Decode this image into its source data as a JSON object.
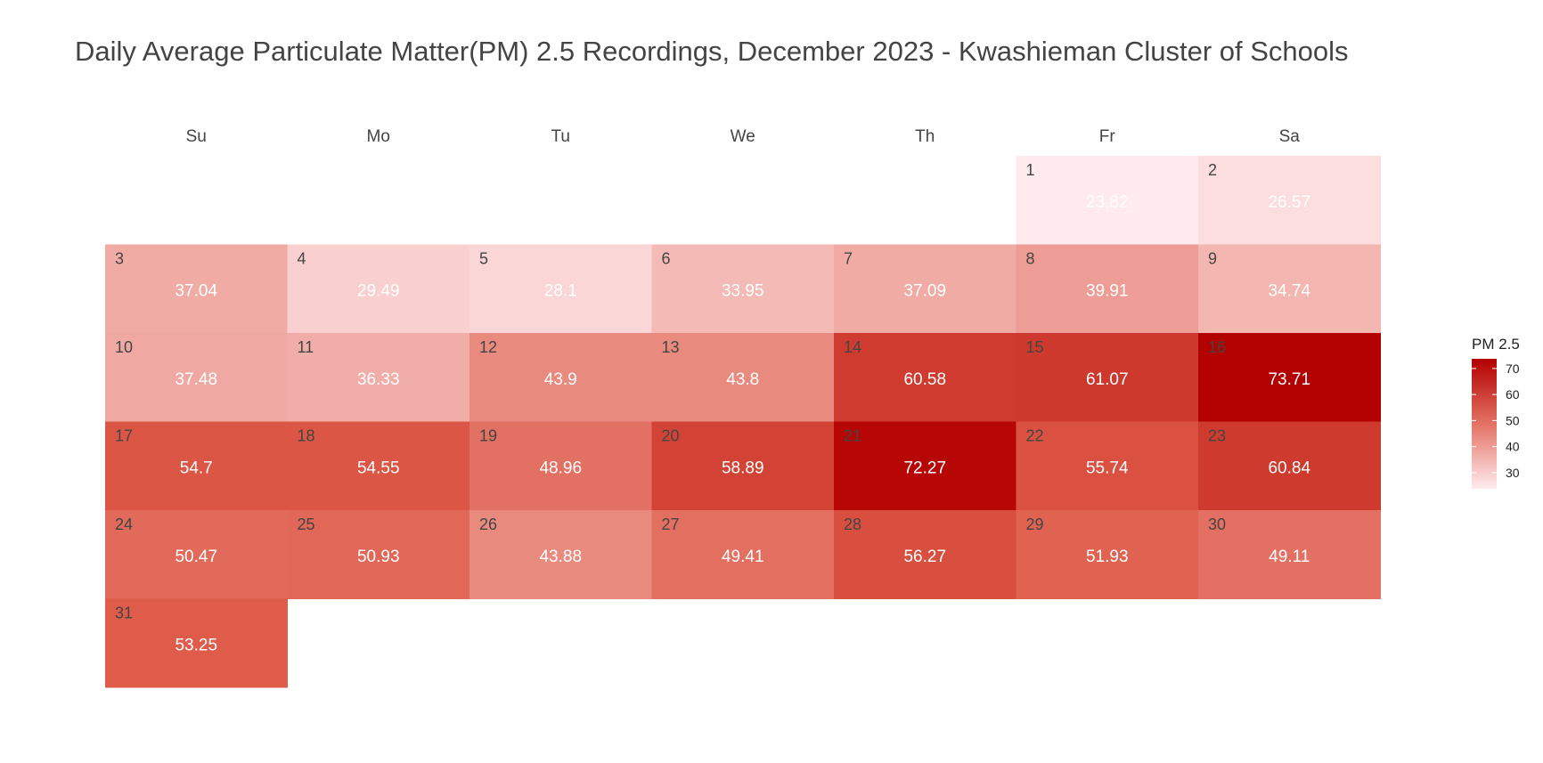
{
  "chart_data": {
    "type": "heatmap",
    "title": "Daily Average Particulate Matter(PM) 2.5 Recordings, December 2023 - Kwashieman Cluster of Schools",
    "weekdays": [
      "Su",
      "Mo",
      "Tu",
      "We",
      "Th",
      "Fr",
      "Sa"
    ],
    "first_weekday_index": 5,
    "days": [
      {
        "day": "1",
        "value": 23.82
      },
      {
        "day": "2",
        "value": 26.57
      },
      {
        "day": "3",
        "value": 37.04
      },
      {
        "day": "4",
        "value": 29.49
      },
      {
        "day": "5",
        "value": 28.1
      },
      {
        "day": "6",
        "value": 33.95
      },
      {
        "day": "7",
        "value": 37.09
      },
      {
        "day": "8",
        "value": 39.91
      },
      {
        "day": "9",
        "value": 34.74
      },
      {
        "day": "10",
        "value": 37.48
      },
      {
        "day": "11",
        "value": 36.33
      },
      {
        "day": "12",
        "value": 43.9
      },
      {
        "day": "13",
        "value": 43.8
      },
      {
        "day": "14",
        "value": 60.58
      },
      {
        "day": "15",
        "value": 61.07
      },
      {
        "day": "16",
        "value": 73.71
      },
      {
        "day": "17",
        "value": 54.7
      },
      {
        "day": "18",
        "value": 54.55
      },
      {
        "day": "19",
        "value": 48.96
      },
      {
        "day": "20",
        "value": 58.89
      },
      {
        "day": "21",
        "value": 72.27
      },
      {
        "day": "22",
        "value": 55.74
      },
      {
        "day": "23",
        "value": 60.84
      },
      {
        "day": "24",
        "value": 50.47
      },
      {
        "day": "25",
        "value": 50.93
      },
      {
        "day": "26",
        "value": 43.88
      },
      {
        "day": "27",
        "value": 49.41
      },
      {
        "day": "28",
        "value": 56.27
      },
      {
        "day": "29",
        "value": 51.93
      },
      {
        "day": "30",
        "value": 49.11
      },
      {
        "day": "31",
        "value": 53.25
      }
    ],
    "legend": {
      "title": "PM 2.5",
      "ticks": [
        30,
        40,
        50,
        60,
        70
      ],
      "range": [
        23.82,
        73.71
      ],
      "low_color": "#ffebee",
      "high_color": "#b30000"
    }
  }
}
